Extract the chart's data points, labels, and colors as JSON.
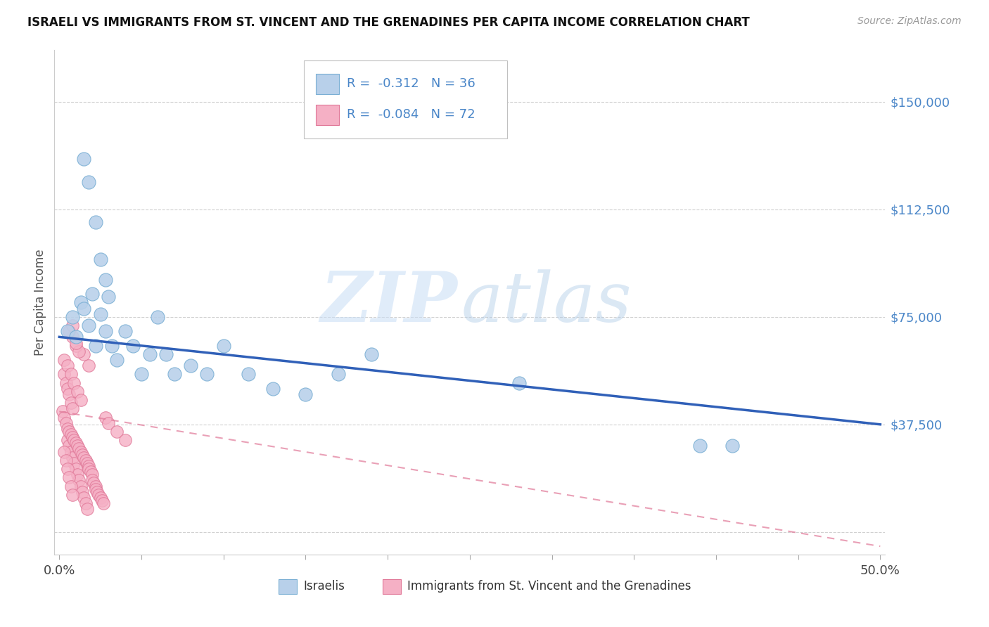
{
  "title": "ISRAELI VS IMMIGRANTS FROM ST. VINCENT AND THE GRENADINES PER CAPITA INCOME CORRELATION CHART",
  "source": "Source: ZipAtlas.com",
  "ylabel": "Per Capita Income",
  "watermark_zip": "ZIP",
  "watermark_atlas": "atlas",
  "xlim": [
    -0.003,
    0.503
  ],
  "ylim": [
    -8000,
    168000
  ],
  "yticks": [
    0,
    37500,
    75000,
    112500,
    150000
  ],
  "ytick_labels": [
    "",
    "$37,500",
    "$75,000",
    "$112,500",
    "$150,000"
  ],
  "xtick_positions": [
    0.0,
    0.05,
    0.1,
    0.15,
    0.2,
    0.25,
    0.3,
    0.35,
    0.4,
    0.45,
    0.5
  ],
  "xtick_labels": [
    "0.0%",
    "",
    "",
    "",
    "",
    "",
    "",
    "",
    "",
    "",
    "50.0%"
  ],
  "blue_color": "#b8d0ea",
  "blue_edge": "#7aafd4",
  "blue_line_color": "#3060b8",
  "pink_color": "#f5b0c5",
  "pink_edge": "#e07898",
  "pink_line_color": "#e07898",
  "axis_tick_color": "#4a86c8",
  "grid_color": "#cccccc",
  "background": "#ffffff",
  "title_fontsize": 12,
  "tick_fontsize": 13,
  "blue_trend": [
    0.0,
    68000,
    0.5,
    37500
  ],
  "pink_trend": [
    0.0,
    42000,
    0.5,
    -5000
  ],
  "blue_x": [
    0.005,
    0.008,
    0.01,
    0.013,
    0.015,
    0.018,
    0.02,
    0.022,
    0.025,
    0.028,
    0.032,
    0.035,
    0.04,
    0.045,
    0.05,
    0.055,
    0.06,
    0.065,
    0.07,
    0.08,
    0.09,
    0.1,
    0.115,
    0.13,
    0.15,
    0.17,
    0.19,
    0.28,
    0.39,
    0.41,
    0.015,
    0.018,
    0.022,
    0.025,
    0.028,
    0.03
  ],
  "blue_y": [
    70000,
    75000,
    68000,
    80000,
    78000,
    72000,
    83000,
    65000,
    76000,
    70000,
    65000,
    60000,
    70000,
    65000,
    55000,
    62000,
    75000,
    62000,
    55000,
    58000,
    55000,
    65000,
    55000,
    50000,
    48000,
    55000,
    62000,
    52000,
    30000,
    30000,
    130000,
    122000,
    108000,
    95000,
    88000,
    82000
  ],
  "pink_x": [
    0.002,
    0.003,
    0.004,
    0.005,
    0.005,
    0.006,
    0.006,
    0.007,
    0.007,
    0.008,
    0.008,
    0.009,
    0.009,
    0.01,
    0.01,
    0.011,
    0.011,
    0.012,
    0.012,
    0.013,
    0.013,
    0.014,
    0.014,
    0.015,
    0.015,
    0.016,
    0.016,
    0.017,
    0.017,
    0.018,
    0.018,
    0.019,
    0.02,
    0.02,
    0.021,
    0.022,
    0.022,
    0.023,
    0.024,
    0.025,
    0.026,
    0.027,
    0.003,
    0.004,
    0.005,
    0.006,
    0.007,
    0.008,
    0.003,
    0.004,
    0.005,
    0.006,
    0.007,
    0.008,
    0.003,
    0.005,
    0.007,
    0.009,
    0.011,
    0.013,
    0.028,
    0.03,
    0.035,
    0.04,
    0.015,
    0.018,
    0.01,
    0.012,
    0.008,
    0.01,
    0.006,
    0.008
  ],
  "pink_y": [
    42000,
    40000,
    38000,
    36000,
    32000,
    35000,
    30000,
    34000,
    28000,
    33000,
    26000,
    32000,
    24000,
    31000,
    22000,
    30000,
    20000,
    29000,
    18000,
    28000,
    16000,
    27000,
    14000,
    26000,
    12000,
    25000,
    10000,
    24000,
    8000,
    23000,
    22000,
    21000,
    20000,
    18000,
    17000,
    16000,
    15000,
    14000,
    13000,
    12000,
    11000,
    10000,
    55000,
    52000,
    50000,
    48000,
    45000,
    43000,
    28000,
    25000,
    22000,
    19000,
    16000,
    13000,
    60000,
    58000,
    55000,
    52000,
    49000,
    46000,
    40000,
    38000,
    35000,
    32000,
    62000,
    58000,
    65000,
    63000,
    68000,
    66000,
    70000,
    72000
  ]
}
